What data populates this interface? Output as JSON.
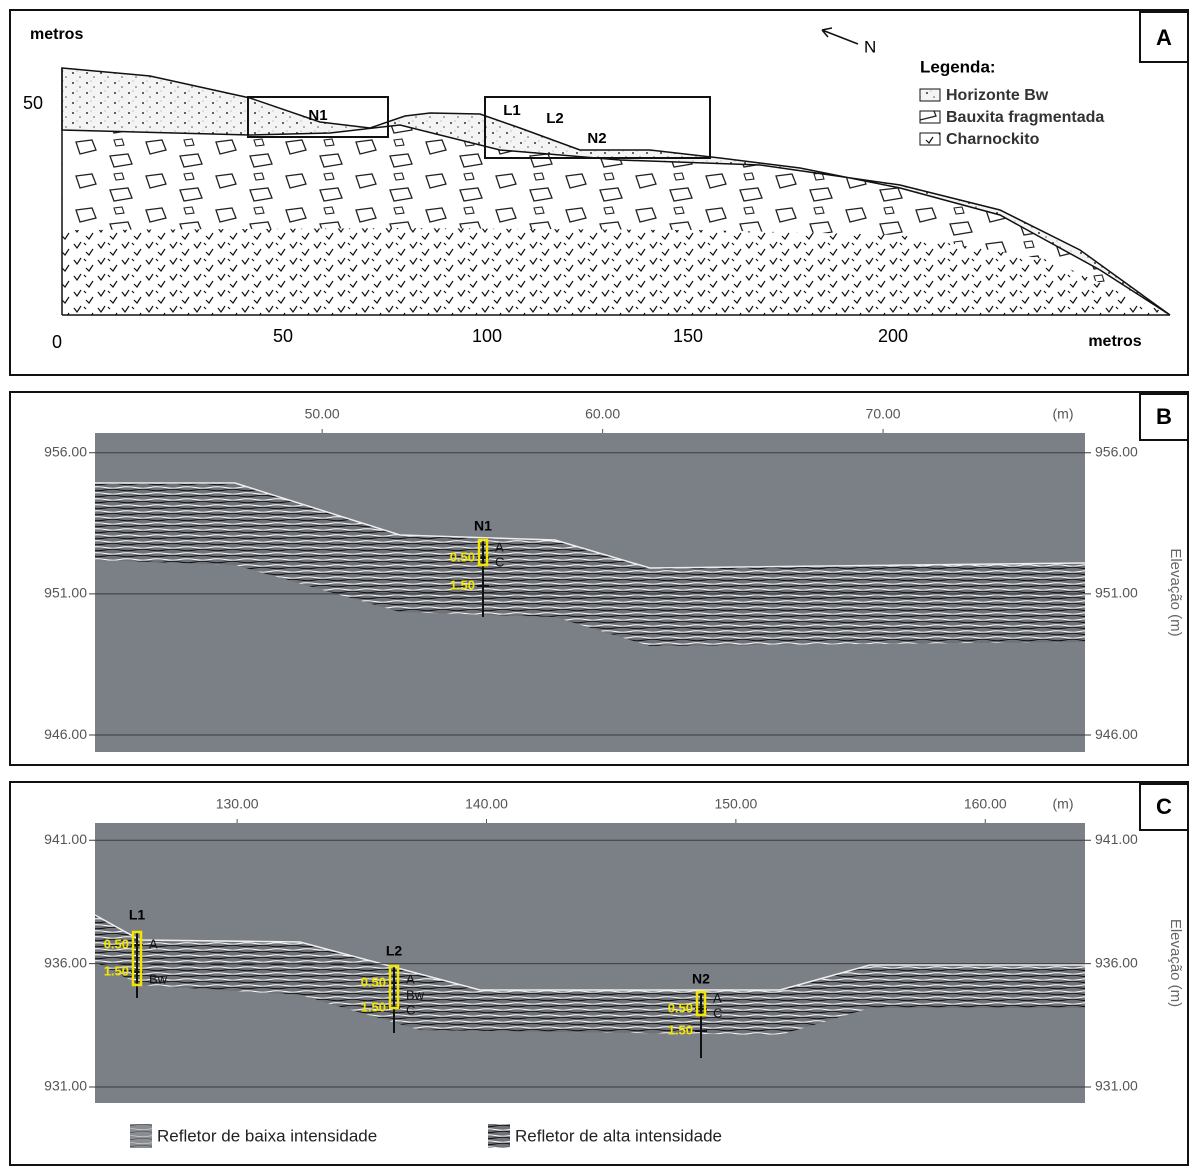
{
  "panel_a": {
    "label": "A",
    "y_unit": "metros",
    "y_ticks": [
      "50"
    ],
    "x_ticks": [
      "0",
      "50",
      "100",
      "150",
      "200"
    ],
    "x_unit": "metros",
    "north": "N",
    "legend_title": "Legenda:",
    "legend": [
      "Horizonte Bw",
      "Bauxita fragmentada",
      "Charnockito"
    ],
    "boxes": [
      "N1",
      "L1",
      "L2",
      "N2"
    ]
  },
  "panel_b": {
    "label": "B",
    "x_unit": "(m)",
    "y_title": "Elevação (m)",
    "xlim": [
      41.9,
      77.2
    ],
    "ylim": [
      945.4,
      956.7
    ],
    "xticks": [
      {
        "value": 50,
        "label": "50.00"
      },
      {
        "value": 60,
        "label": "60.00"
      },
      {
        "value": 70,
        "label": "70.00"
      }
    ],
    "yticks": [
      {
        "value": 956,
        "label": "956.00"
      },
      {
        "value": 951,
        "label": "951.00"
      },
      {
        "value": 946,
        "label": "946.00"
      }
    ],
    "profiles": [
      {
        "name": "N1",
        "depths": [
          "0.50",
          "1.50"
        ],
        "horizons": [
          "A",
          "C"
        ]
      }
    ]
  },
  "panel_c": {
    "label": "C",
    "x_unit": "(m)",
    "y_title": "Elevação (m)",
    "xlim": [
      124.3,
      164.0
    ],
    "ylim": [
      930.35,
      941.7
    ],
    "xticks": [
      {
        "value": 130,
        "label": "130.00"
      },
      {
        "value": 140,
        "label": "140.00"
      },
      {
        "value": 150,
        "label": "150.00"
      },
      {
        "value": 160,
        "label": "160.00"
      }
    ],
    "yticks": [
      {
        "value": 941,
        "label": "941.00"
      },
      {
        "value": 936,
        "label": "936.00"
      },
      {
        "value": 931,
        "label": "931.00"
      }
    ],
    "profiles": [
      {
        "name": "L1",
        "depths": [
          "0.50",
          "1.50"
        ],
        "horizons": [
          "A",
          "Bw"
        ]
      },
      {
        "name": "L2",
        "depths": [
          "0.50",
          "1.50"
        ],
        "horizons": [
          "A",
          "Bw",
          "C"
        ]
      },
      {
        "name": "N2",
        "depths": [
          "0.50",
          "1.50"
        ],
        "horizons": [
          "A",
          "C"
        ]
      }
    ],
    "legend": [
      "Refletor de baixa intensidade",
      "Refletor de alta intensidade"
    ]
  }
}
